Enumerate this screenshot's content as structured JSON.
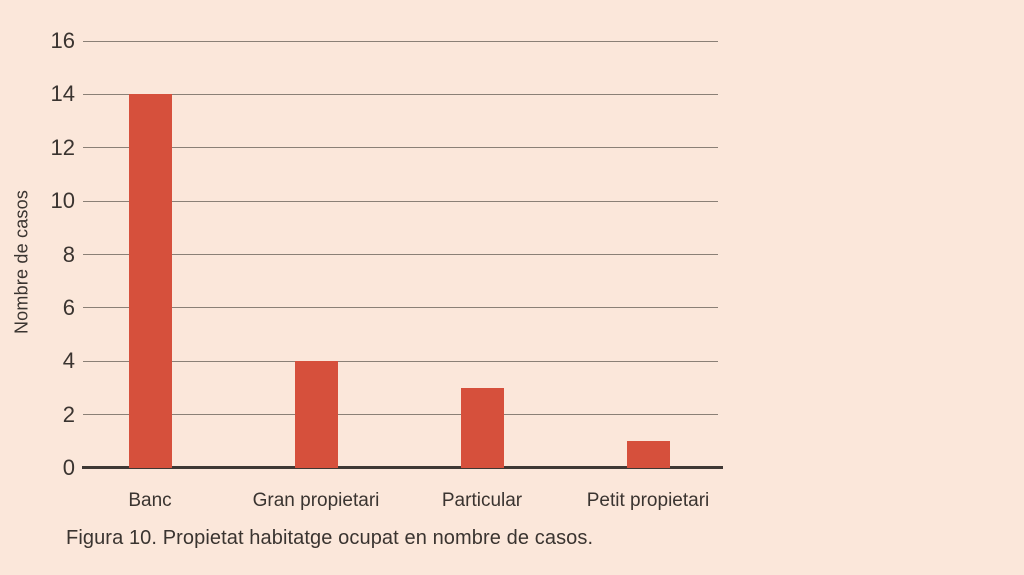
{
  "figure": {
    "caption": "Figura 10. Propietat habitatge ocupat en nombre de casos."
  },
  "chart_data": {
    "type": "bar",
    "categories": [
      "Banc",
      "Gran propietari",
      "Particular",
      "Petit propietari"
    ],
    "values": [
      14,
      4,
      3,
      1
    ],
    "title": "",
    "xlabel": "",
    "ylabel": "Nombre de casos",
    "yticks": [
      0,
      2,
      4,
      6,
      8,
      10,
      12,
      14,
      16
    ],
    "ylim": [
      0,
      16
    ],
    "grid": true,
    "legend": "none",
    "caption": "Figura 10. Propietat habitatge ocupat en nombre de casos.",
    "colors": {
      "background": "#fbe7da",
      "bar": "#d6503c",
      "gridline": "#8a8076",
      "axis_line": "#3e3834",
      "text": "#3a3430"
    }
  }
}
